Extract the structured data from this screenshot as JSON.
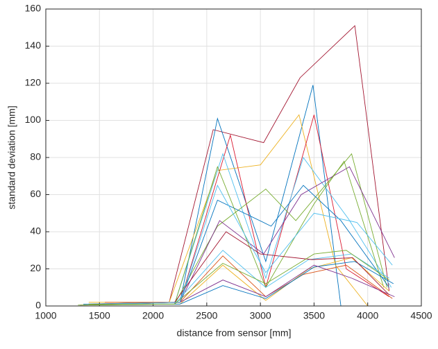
{
  "chart_data": {
    "type": "line",
    "xlabel": "distance from sensor [mm]",
    "ylabel": "standard deviation [mm]",
    "xlim": [
      1000,
      4500
    ],
    "xticks": [
      1000,
      1500,
      2000,
      2500,
      3000,
      3500,
      4000,
      4500
    ],
    "ylim": [
      0,
      160
    ],
    "yticks": [
      0,
      20,
      40,
      60,
      80,
      100,
      120,
      140,
      160
    ],
    "grid": true,
    "series": [
      {
        "color": "#A2142F",
        "x": [
          1320,
          2150,
          2560,
          3030,
          3370,
          3880,
          4200
        ],
        "values": [
          0.5,
          2,
          95,
          88,
          123,
          151,
          8
        ]
      },
      {
        "color": "#0072BD",
        "x": [
          1350,
          2250,
          2600,
          3050,
          3490,
          3750
        ],
        "values": [
          1,
          2,
          101,
          24,
          119,
          0
        ]
      },
      {
        "color": "#EDB120",
        "x": [
          1400,
          2150,
          2600,
          3000,
          3360,
          3700,
          4000
        ],
        "values": [
          2,
          2,
          73,
          76,
          103,
          22,
          0
        ]
      },
      {
        "color": "#D9182F",
        "x": [
          1450,
          2250,
          2720,
          3050,
          3500,
          3800,
          4200
        ],
        "values": [
          1,
          2,
          92,
          10,
          103,
          20,
          5
        ]
      },
      {
        "color": "#4DBEEE",
        "x": [
          1500,
          2200,
          2650,
          3050,
          3400,
          3820,
          4220
        ],
        "values": [
          1,
          1,
          82,
          15,
          80,
          47,
          10
        ]
      },
      {
        "color": "#77AC30",
        "x": [
          1350,
          2200,
          2600,
          3050,
          3330,
          3850,
          4180
        ],
        "values": [
          0.5,
          1,
          43,
          63,
          46,
          82,
          10
        ]
      },
      {
        "color": "#7E2F8E",
        "x": [
          1450,
          2250,
          2620,
          3030,
          3380,
          3830,
          4250
        ],
        "values": [
          1,
          2,
          46,
          28,
          60,
          75,
          26
        ]
      },
      {
        "color": "#0072BD",
        "x": [
          1400,
          2250,
          2600,
          3100,
          3400,
          3750,
          4200
        ],
        "values": [
          1,
          2,
          57,
          43,
          65,
          46,
          10
        ]
      },
      {
        "color": "#77AC30",
        "x": [
          1300,
          2200,
          2600,
          3050,
          3500,
          3780,
          4150
        ],
        "values": [
          0.5,
          1,
          75,
          10,
          55,
          78,
          10
        ]
      },
      {
        "color": "#4DBEEE",
        "x": [
          1500,
          2200,
          2650,
          3050,
          3450,
          3850,
          4200
        ],
        "values": [
          1,
          1,
          30,
          10,
          25,
          28,
          15
        ]
      },
      {
        "color": "#D95319",
        "x": [
          1550,
          2250,
          2650,
          3050,
          3400,
          3800,
          4230
        ],
        "values": [
          2,
          2,
          27,
          5,
          17,
          22,
          4
        ]
      },
      {
        "color": "#EDB120",
        "x": [
          1600,
          2250,
          2650,
          3050,
          3450,
          3850,
          4200
        ],
        "values": [
          1,
          1,
          22,
          3,
          20,
          26,
          8
        ]
      },
      {
        "color": "#0072BD",
        "x": [
          1450,
          2250,
          2650,
          3050,
          3500,
          3880,
          4240
        ],
        "values": [
          1,
          1,
          11,
          4,
          21,
          24,
          12
        ]
      },
      {
        "color": "#7E2F8E",
        "x": [
          1500,
          2250,
          2650,
          3050,
          3500,
          3850,
          4250
        ],
        "values": [
          1,
          2,
          14,
          5,
          22,
          15,
          5
        ]
      },
      {
        "color": "#A2142F",
        "x": [
          1600,
          2200,
          2680,
          3000,
          3480,
          3860,
          4200
        ],
        "values": [
          1,
          2,
          40,
          28,
          25,
          26,
          6
        ]
      },
      {
        "color": "#4DBEEE",
        "x": [
          1550,
          2250,
          2600,
          3050,
          3500,
          3900,
          4230
        ],
        "values": [
          1,
          2,
          65,
          18,
          50,
          45,
          22
        ]
      },
      {
        "color": "#77AC30",
        "x": [
          1400,
          2200,
          2650,
          3050,
          3500,
          3800,
          4200
        ],
        "values": [
          1,
          1,
          23,
          12,
          28,
          30,
          14
        ]
      }
    ]
  }
}
